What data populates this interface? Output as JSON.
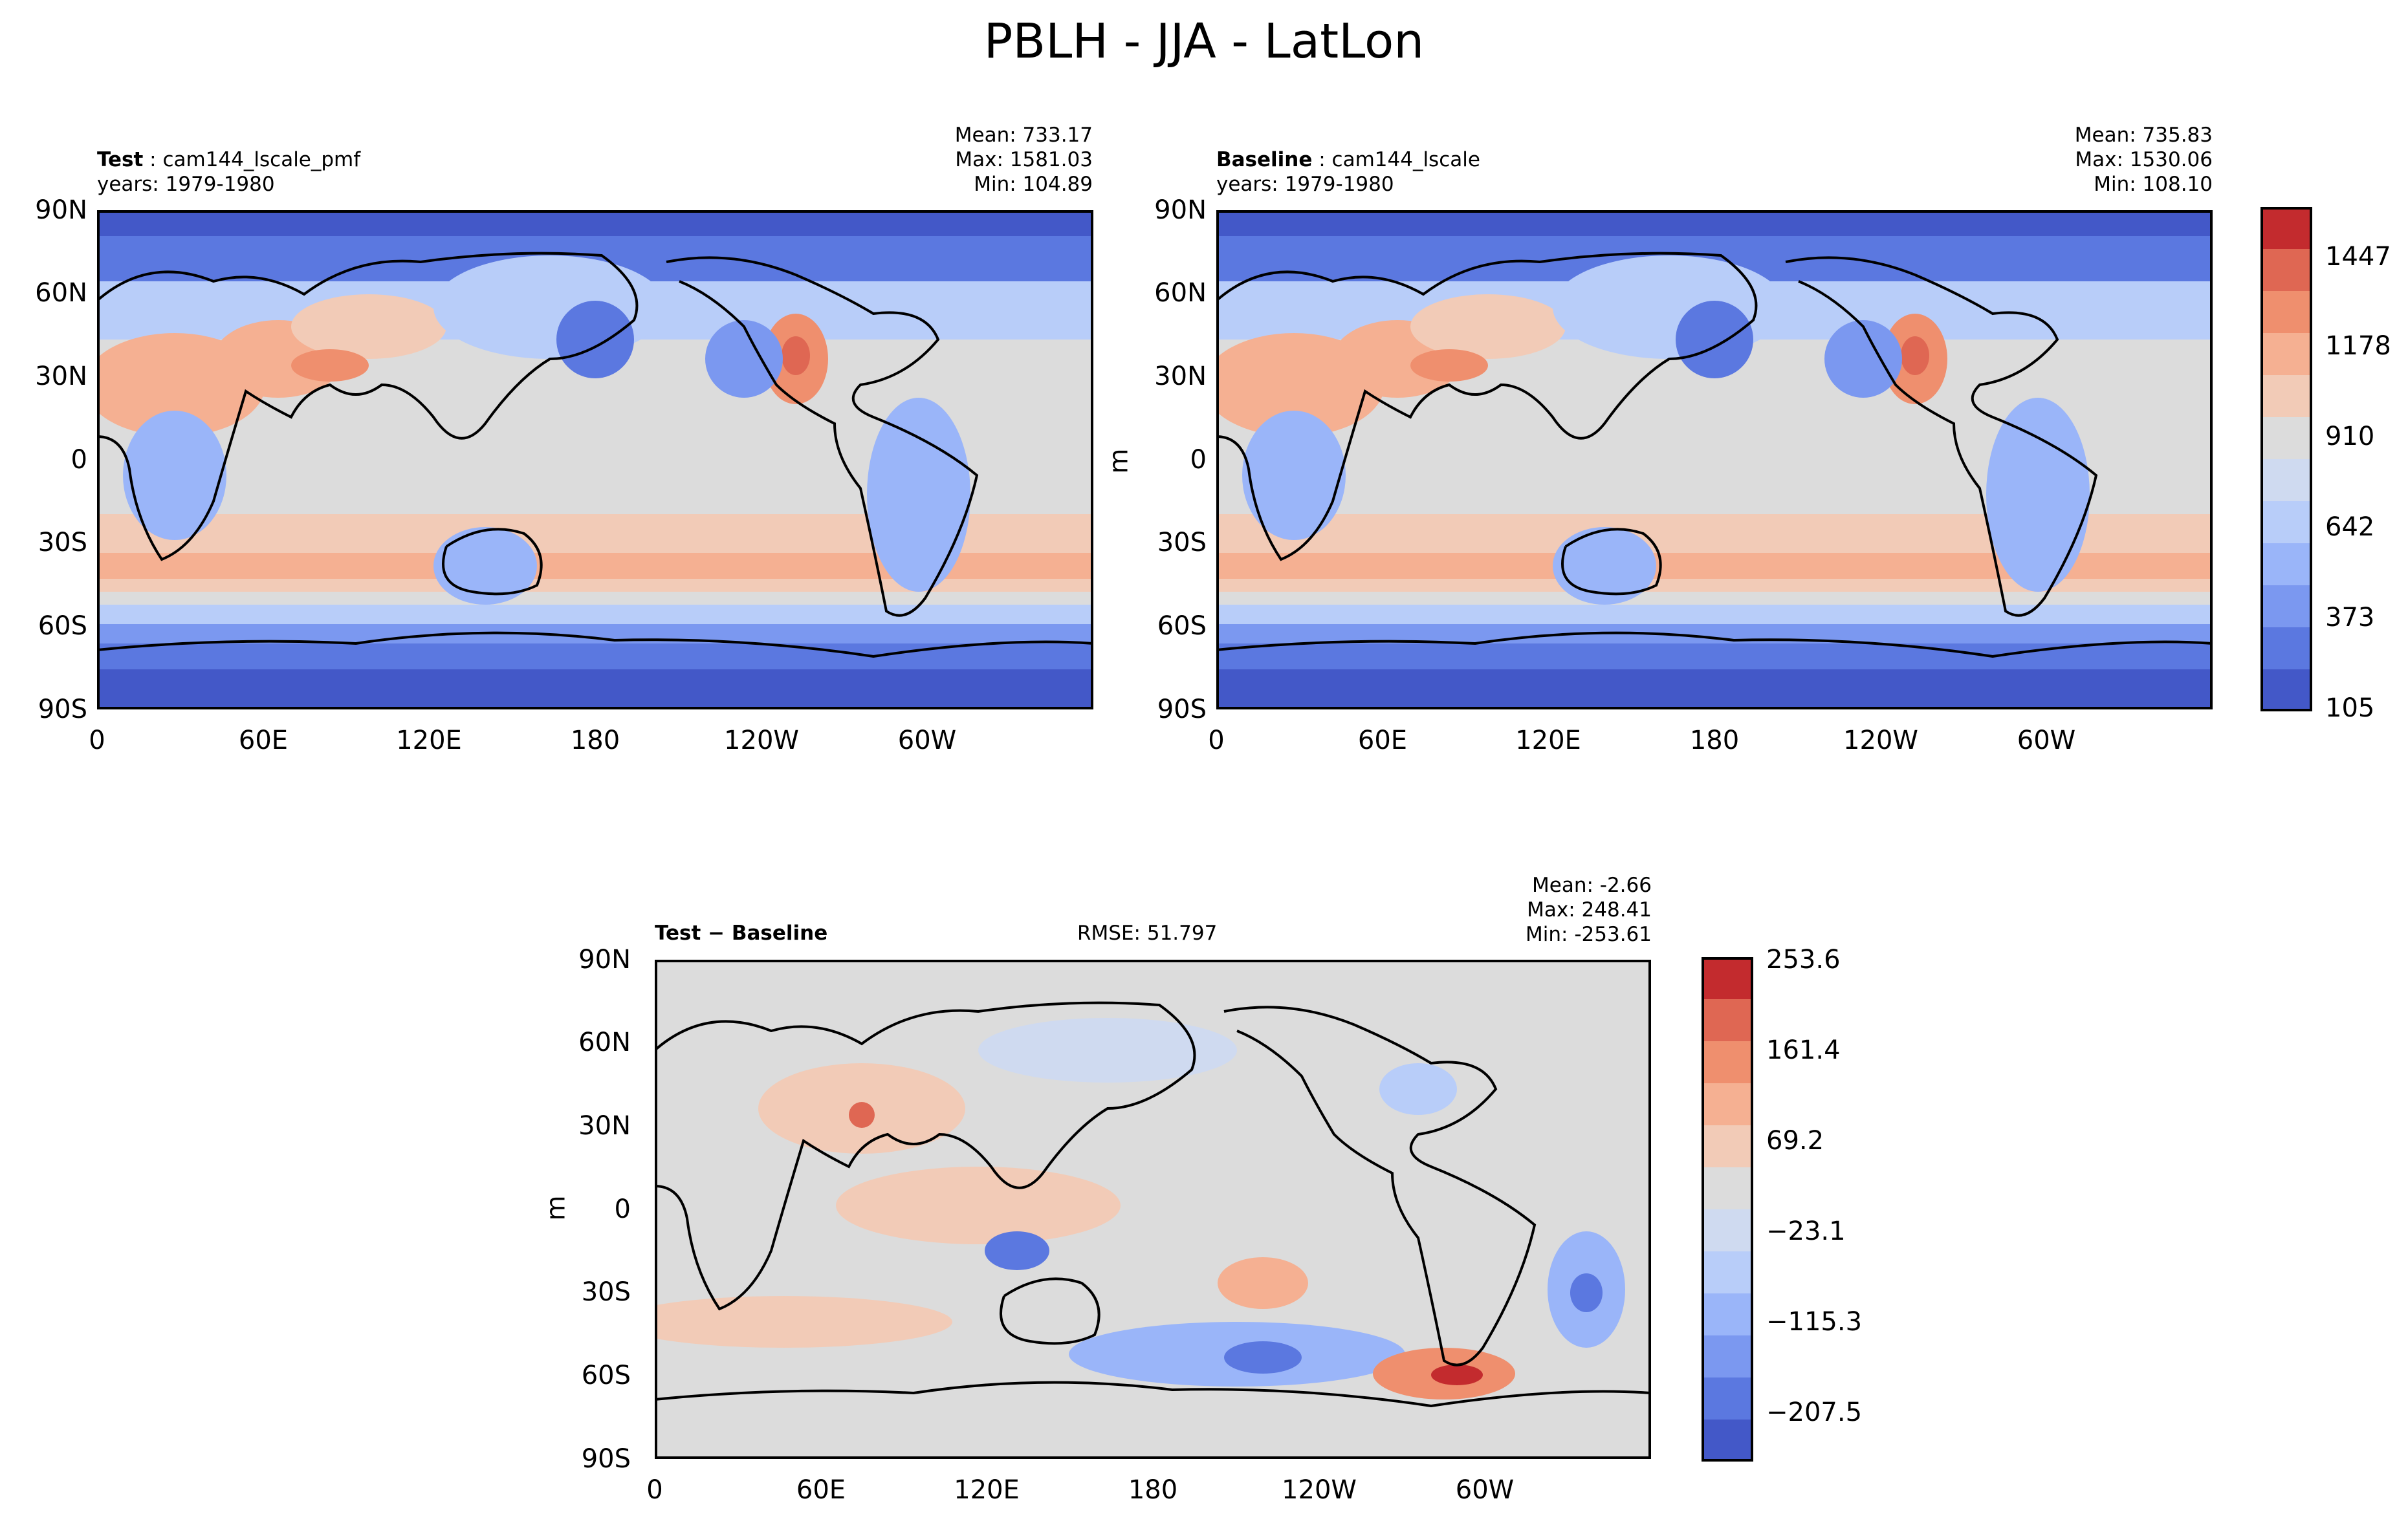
{
  "figure_title": "PBLH - JJA - LatLon",
  "panels": {
    "test": {
      "label_bold": "Test",
      "label_name": "cam144_lscale_pmf",
      "years": "years: 1979-1980",
      "mean": "Mean: 733.17",
      "max": "Max: 1581.03",
      "min": "Min: 104.89"
    },
    "baseline": {
      "label_bold": "Baseline",
      "label_name": "cam144_lscale",
      "years": "years: 1979-1980",
      "mean": "Mean: 735.83",
      "max": "Max: 1530.06",
      "min": "Min: 108.10",
      "units": "m"
    },
    "diff": {
      "label_bold": "Test − Baseline",
      "rmse": "RMSE: 51.797",
      "mean": "Mean: -2.66",
      "max": "Max: 248.41",
      "min": "Min: -253.61",
      "units": "m"
    }
  },
  "axes": {
    "lat_ticks": [
      "90N",
      "60N",
      "30N",
      "0",
      "30S",
      "60S",
      "90S"
    ],
    "lon_ticks": [
      "0",
      "60E",
      "120E",
      "180",
      "120W",
      "60W"
    ]
  },
  "colorbars": {
    "main": {
      "ticks": [
        "1447",
        "1178",
        "910",
        "642",
        "373",
        "105"
      ]
    },
    "diff": {
      "ticks": [
        "253.6",
        "161.4",
        "69.2",
        "−23.1",
        "−115.3",
        "−207.5"
      ]
    }
  },
  "colors": {
    "levels": [
      "#4358c8",
      "#5b78e0",
      "#7b98f0",
      "#9ab5f9",
      "#b8cdf9",
      "#cfdaf0",
      "#dcdcdc",
      "#f2cbb7",
      "#f5b092",
      "#ef8f6e",
      "#df6753",
      "#c32b2e"
    ],
    "coast": "#000000"
  }
}
